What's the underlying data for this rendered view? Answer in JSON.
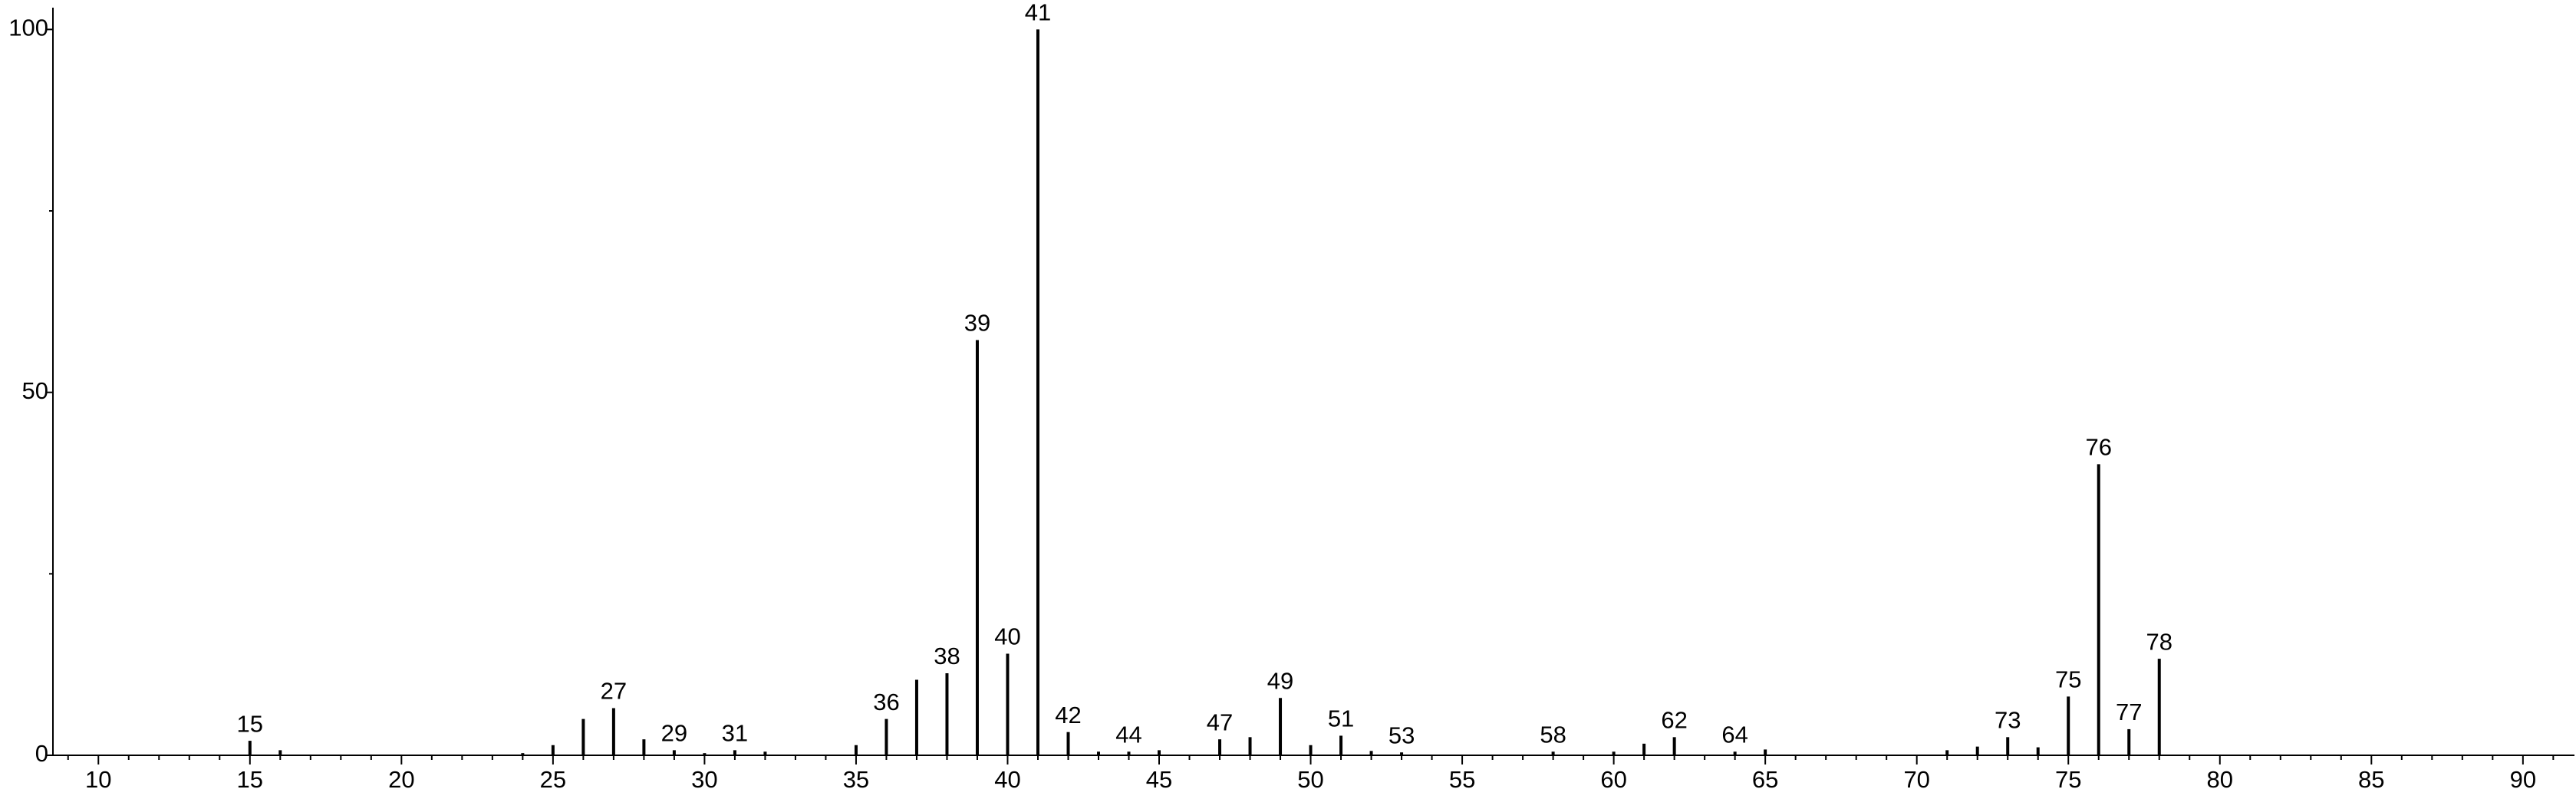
{
  "chart_data": {
    "type": "stem",
    "x": [
      15,
      16,
      24,
      25,
      26,
      27,
      28,
      29,
      30,
      31,
      32,
      35,
      36,
      37,
      38,
      39,
      40,
      41,
      42,
      43,
      44,
      45,
      47,
      48,
      49,
      50,
      51,
      52,
      53,
      58,
      60,
      61,
      62,
      64,
      65,
      71,
      72,
      73,
      74,
      75,
      76,
      77,
      78
    ],
    "values": [
      2.0,
      0.7,
      0.3,
      1.4,
      5.0,
      6.5,
      2.2,
      0.7,
      0.3,
      0.7,
      0.5,
      1.4,
      5.0,
      10.4,
      11.3,
      57.2,
      14.0,
      100,
      3.2,
      0.5,
      0.5,
      0.7,
      2.2,
      2.5,
      7.9,
      1.4,
      2.7,
      0.6,
      0.4,
      0.5,
      0.5,
      1.6,
      2.5,
      0.5,
      0.8,
      0.7,
      1.2,
      2.5,
      1.1,
      8.1,
      40.1,
      3.6,
      13.3
    ],
    "peak_labels": [
      15,
      27,
      29,
      31,
      36,
      38,
      39,
      40,
      41,
      42,
      44,
      47,
      49,
      51,
      53,
      58,
      62,
      64,
      73,
      75,
      76,
      77,
      78
    ],
    "color": "#000000",
    "xlim": [
      8.5,
      91.7
    ],
    "ylim": [
      0,
      103
    ],
    "xticks": [
      10,
      15,
      20,
      25,
      30,
      35,
      40,
      45,
      50,
      55,
      60,
      65,
      70,
      75,
      80,
      85,
      90
    ],
    "xticks_minor": [
      9,
      11,
      12,
      13,
      14,
      16,
      17,
      18,
      19,
      21,
      22,
      23,
      24,
      26,
      27,
      28,
      29,
      31,
      32,
      33,
      34,
      36,
      37,
      38,
      39,
      41,
      42,
      43,
      44,
      46,
      47,
      48,
      49,
      51,
      52,
      53,
      54,
      56,
      57,
      58,
      59,
      61,
      62,
      63,
      64,
      66,
      67,
      68,
      69,
      71,
      72,
      73,
      74,
      76,
      77,
      78,
      79,
      81,
      82,
      83,
      84,
      86,
      87,
      88,
      89,
      91
    ],
    "yticks": [
      0,
      50,
      100
    ],
    "yticks_minor": [
      25,
      75
    ]
  }
}
